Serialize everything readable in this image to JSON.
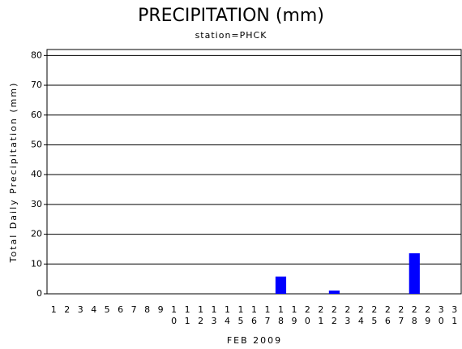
{
  "chart_data": {
    "type": "bar",
    "title": "PRECIPITATION (mm)",
    "subtitle": "station=PHCK",
    "x_label": "FEB 2009",
    "y_label": "Total Daily Precipitation (mm)",
    "categories": [
      "1",
      "2",
      "3",
      "4",
      "5",
      "6",
      "7",
      "8",
      "9",
      "10",
      "11",
      "12",
      "13",
      "14",
      "15",
      "16",
      "17",
      "18",
      "19",
      "20",
      "21",
      "22",
      "23",
      "24",
      "25",
      "26",
      "27",
      "28",
      "29",
      "30",
      "31"
    ],
    "values": [
      0,
      0,
      0,
      0,
      0,
      0,
      0,
      0,
      0,
      0,
      0,
      0,
      0,
      0,
      0,
      0,
      0,
      5.8,
      0,
      0,
      0,
      1.1,
      0,
      0,
      0,
      0,
      0,
      13.6,
      0,
      0,
      0
    ],
    "color": "#0000ff",
    "ylim": [
      0,
      82
    ],
    "yticks": [
      0,
      10,
      20,
      30,
      40,
      50,
      60,
      70,
      80
    ],
    "grid": true
  }
}
